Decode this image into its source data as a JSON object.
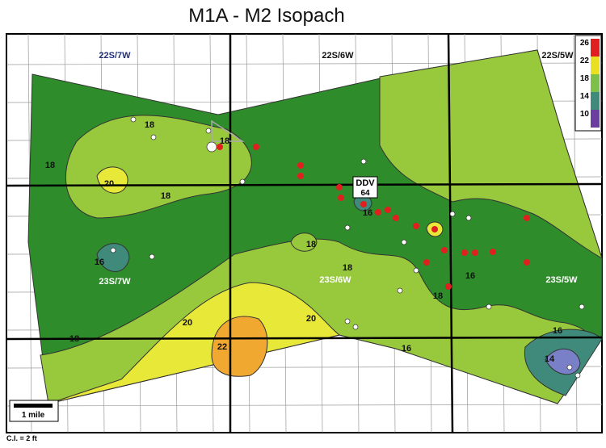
{
  "title": "M1A - M2 Isopach",
  "township_labels": [
    "22S/7W",
    "22S/6W",
    "22S/5W",
    "23S/7W",
    "23S/6W",
    "23S/5W"
  ],
  "well_label": {
    "name": "DDV",
    "number": "64"
  },
  "contour_labels": [
    "18",
    "18",
    "18",
    "20",
    "18",
    "16",
    "18",
    "18",
    "16",
    "18",
    "20",
    "22",
    "20",
    "18",
    "16",
    "16",
    "14",
    "16"
  ],
  "legend": [
    {
      "value": 26,
      "color": "#e02020"
    },
    {
      "value": 22,
      "color": "#e8e020"
    },
    {
      "value": 18,
      "color": "#7cc04a"
    },
    {
      "value": 14,
      "color": "#3f8a7a"
    },
    {
      "value": 10,
      "color": "#6a3fa0"
    }
  ],
  "scale_bar": "1 mile",
  "contour_interval": "C.I. = 2 ft"
}
